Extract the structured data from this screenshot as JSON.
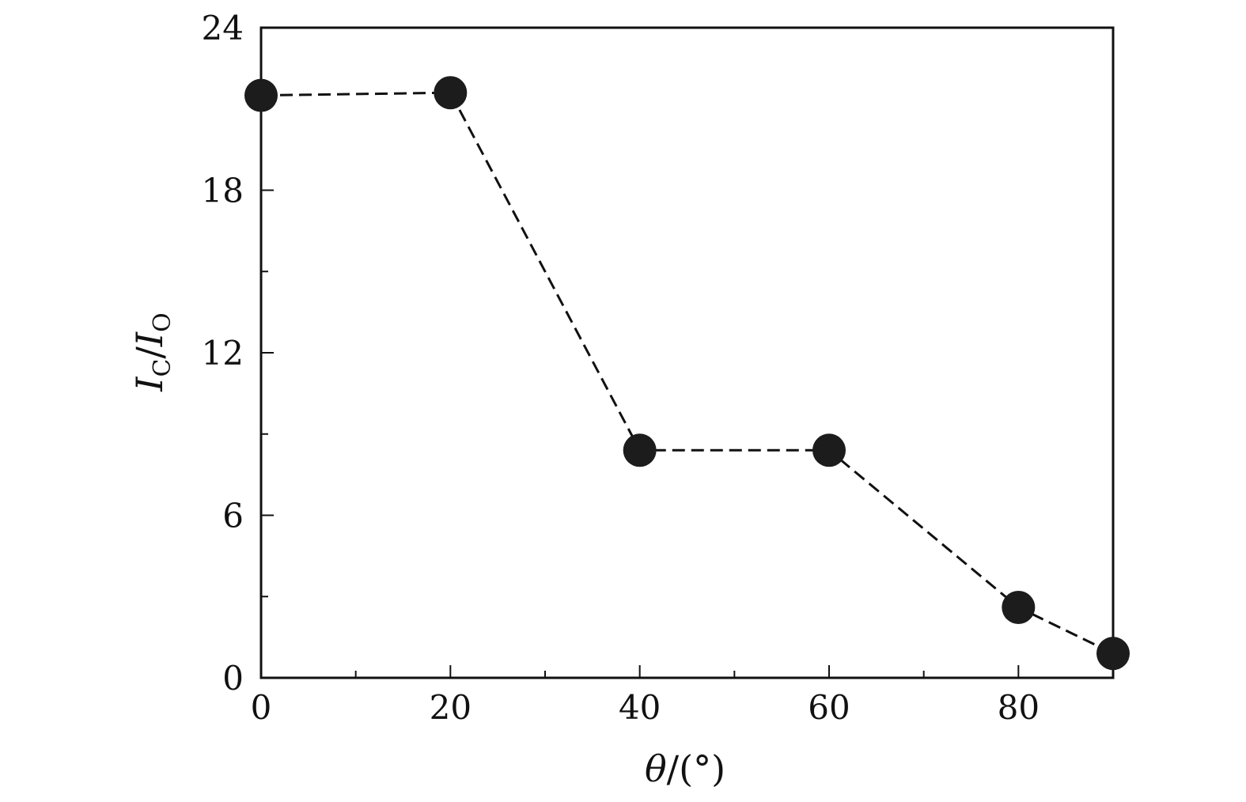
{
  "chart_data": {
    "type": "line",
    "title": "",
    "xlabel": {
      "symbol": "θ",
      "rest": "/(°)"
    },
    "ylabel": {
      "i1": "I",
      "s1": "C",
      "slash": "/",
      "i2": "I",
      "s2": "O"
    },
    "xlim": [
      0,
      90
    ],
    "ylim": [
      0,
      24
    ],
    "x_ticks": [
      0,
      20,
      40,
      60,
      80
    ],
    "y_ticks": [
      0,
      6,
      12,
      18,
      24
    ],
    "x_minor_ticks": [
      10,
      30,
      50,
      70
    ],
    "y_minor_ticks": [
      3,
      9,
      15,
      21
    ],
    "x_tick_labels": [
      "0",
      "20",
      "40",
      "60",
      "80"
    ],
    "y_tick_labels": [
      "0",
      "6",
      "12",
      "18",
      "24"
    ],
    "series": [
      {
        "x": [
          0,
          20,
          40,
          60,
          80,
          90
        ],
        "y": [
          21.5,
          21.6,
          8.4,
          8.4,
          2.6,
          0.9
        ],
        "line_style": "dashed",
        "marker": "filled-circle",
        "color": "#1c1c1c"
      }
    ],
    "grid": false,
    "legend": "none"
  }
}
